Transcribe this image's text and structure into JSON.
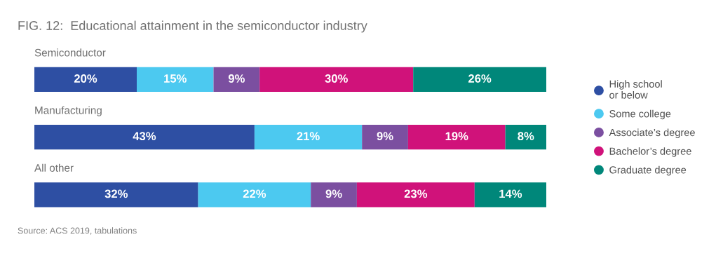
{
  "chart_data": {
    "type": "bar",
    "orientation": "horizontal",
    "stacked": true,
    "title": "FIG. 12:  Educational attainment in the semiconductor industry",
    "categories": [
      "Semiconductor",
      "Manufacturing",
      "All other"
    ],
    "series": [
      {
        "name": "High school\nor below",
        "color": "#2e4fa3",
        "values": [
          20,
          43,
          32
        ],
        "value_labels": [
          "20%",
          "43%",
          "32%"
        ]
      },
      {
        "name": "Some college",
        "color": "#4cc9f0",
        "values": [
          15,
          21,
          22
        ],
        "value_labels": [
          "15%",
          "21%",
          "22%"
        ]
      },
      {
        "name": "Associate’s degree",
        "color": "#7b4fa0",
        "values": [
          9,
          9,
          9
        ],
        "value_labels": [
          "9%",
          "9%",
          "9%"
        ]
      },
      {
        "name": "Bachelor’s degree",
        "color": "#d0127a",
        "values": [
          30,
          19,
          23
        ],
        "value_labels": [
          "30%",
          "19%",
          "23%"
        ]
      },
      {
        "name": "Graduate degree",
        "color": "#00877a",
        "values": [
          26,
          8,
          14
        ],
        "value_labels": [
          "26%",
          "8%",
          "14%"
        ]
      }
    ],
    "legend": "right",
    "marker": "circle",
    "annotations": [
      "Source: ACS 2019, tabulations"
    ]
  }
}
